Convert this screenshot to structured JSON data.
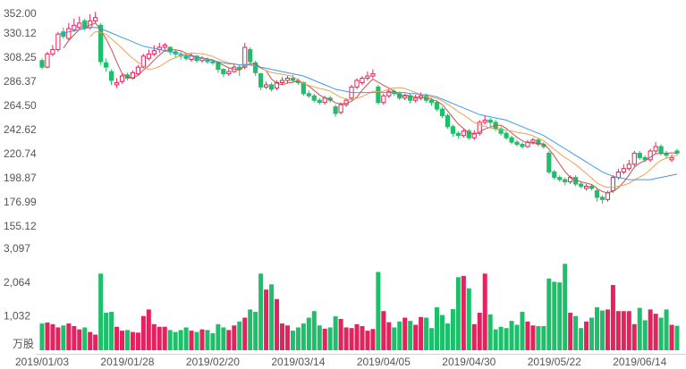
{
  "chart_data": {
    "type": "candlestick",
    "categories": [
      "2019/01/03",
      null,
      null,
      null,
      null,
      null,
      null,
      null,
      null,
      null,
      null,
      null,
      null,
      null,
      null,
      null,
      "2019/01/28",
      null,
      null,
      null,
      null,
      null,
      null,
      null,
      null,
      null,
      null,
      null,
      null,
      null,
      null,
      null,
      "2019/02/20",
      null,
      null,
      null,
      null,
      null,
      null,
      null,
      null,
      null,
      null,
      null,
      null,
      null,
      null,
      null,
      "2019/03/14",
      null,
      null,
      null,
      null,
      null,
      null,
      null,
      null,
      null,
      null,
      null,
      null,
      null,
      null,
      null,
      "2019/04/05",
      null,
      null,
      null,
      null,
      null,
      null,
      null,
      null,
      null,
      null,
      null,
      null,
      null,
      null,
      null,
      "2019/04/30",
      null,
      null,
      null,
      null,
      null,
      null,
      null,
      null,
      null,
      null,
      null,
      null,
      null,
      null,
      null,
      "2019/05/22",
      null,
      null,
      null,
      null,
      null,
      null,
      null,
      null,
      null,
      null,
      null,
      null,
      null,
      null,
      null,
      "2019/06/14",
      null,
      null,
      null,
      null,
      null,
      null,
      null
    ],
    "open": [
      306,
      300,
      312,
      316,
      332,
      326,
      334,
      336,
      342,
      336,
      342,
      338,
      304,
      296,
      284,
      287,
      293,
      290,
      294,
      300,
      308,
      312,
      316,
      318,
      318,
      314,
      311,
      310,
      307,
      310,
      306,
      307,
      305,
      304,
      298,
      294,
      296,
      300,
      300,
      316,
      304,
      294,
      282,
      284,
      281,
      286,
      288,
      290,
      288,
      286,
      276,
      274,
      270,
      268,
      272,
      264,
      259,
      266,
      272,
      282,
      286,
      290,
      292,
      282,
      268,
      274,
      278,
      276,
      272,
      274,
      270,
      272,
      274,
      270,
      268,
      262,
      256,
      246,
      240,
      238,
      242,
      236,
      240,
      250,
      252,
      250,
      244,
      240,
      236,
      232,
      230,
      228,
      232,
      234,
      230,
      222,
      205,
      200,
      198,
      196,
      200,
      194,
      190,
      192,
      188,
      182,
      180,
      188,
      200,
      205,
      208,
      212,
      222,
      218,
      216,
      224,
      228,
      222,
      216,
      224
    ],
    "high": [
      308,
      314,
      320,
      332,
      336,
      340,
      344,
      346,
      344,
      348,
      350,
      340,
      308,
      298,
      290,
      294,
      295,
      297,
      302,
      312,
      316,
      320,
      322,
      322,
      319,
      316,
      314,
      312,
      313,
      311,
      310,
      309,
      307,
      305,
      299,
      299,
      303,
      302,
      322,
      318,
      306,
      295,
      287,
      286,
      288,
      291,
      292,
      293,
      290,
      287,
      279,
      276,
      272,
      274,
      274,
      266,
      268,
      272,
      284,
      290,
      292,
      296,
      298,
      284,
      276,
      280,
      280,
      278,
      276,
      276,
      275,
      277,
      276,
      272,
      270,
      264,
      258,
      248,
      242,
      244,
      244,
      243,
      252,
      256,
      254,
      252,
      246,
      242,
      238,
      234,
      232,
      234,
      236,
      236,
      232,
      224,
      207,
      202,
      200,
      202,
      202,
      196,
      194,
      194,
      190,
      184,
      188,
      202,
      208,
      212,
      216,
      224,
      224,
      220,
      226,
      232,
      230,
      224,
      221,
      226
    ],
    "low": [
      298,
      299,
      310,
      314,
      326,
      324,
      332,
      334,
      333,
      334,
      340,
      302,
      296,
      284,
      281,
      285,
      288,
      289,
      293,
      299,
      306,
      310,
      313,
      314,
      311,
      309,
      307,
      306,
      305,
      304,
      304,
      303,
      302,
      295,
      291,
      292,
      295,
      292,
      298,
      302,
      292,
      279,
      280,
      278,
      279,
      284,
      286,
      286,
      284,
      274,
      272,
      268,
      266,
      266,
      268,
      255,
      257,
      264,
      270,
      280,
      284,
      288,
      290,
      266,
      266,
      272,
      274,
      270,
      270,
      267,
      268,
      270,
      268,
      265,
      260,
      254,
      244,
      237,
      235,
      236,
      234,
      234,
      238,
      248,
      246,
      242,
      238,
      234,
      230,
      228,
      226,
      227,
      230,
      228,
      226,
      203,
      198,
      196,
      193,
      194,
      192,
      190,
      188,
      188,
      178,
      176,
      178,
      186,
      198,
      203,
      206,
      210,
      216,
      214,
      214,
      222,
      220,
      217,
      214,
      220
    ],
    "close": [
      300,
      312,
      316,
      330,
      328,
      335,
      338,
      340,
      336,
      342,
      345,
      305,
      300,
      288,
      286,
      292,
      290,
      295,
      300,
      310,
      312,
      315,
      318,
      320,
      314,
      312,
      310,
      308,
      310,
      306,
      308,
      305,
      304,
      298,
      294,
      296,
      300,
      298,
      318,
      305,
      295,
      282,
      284,
      280,
      286,
      288,
      290,
      288,
      286,
      276,
      274,
      270,
      268,
      272,
      270,
      258,
      266,
      270,
      282,
      288,
      290,
      292,
      294,
      268,
      274,
      278,
      276,
      272,
      274,
      270,
      272,
      274,
      270,
      268,
      262,
      256,
      246,
      240,
      238,
      242,
      236,
      240,
      250,
      252,
      250,
      244,
      240,
      236,
      232,
      230,
      228,
      232,
      234,
      230,
      228,
      205,
      200,
      198,
      196,
      200,
      194,
      192,
      192,
      190,
      182,
      180,
      186,
      200,
      205,
      208,
      212,
      222,
      218,
      216,
      224,
      228,
      222,
      220,
      218,
      222
    ],
    "up_color": "#e3235d",
    "down_color": "#1dbf6a",
    "ylim": [
      155.12,
      352
    ],
    "yticks": [
      155.12,
      176.99,
      198.87,
      220.74,
      242.62,
      {
        "value": 264.5,
        "label": "264.50"
      },
      286.37,
      308.25,
      330.12,
      {
        "value": 352,
        "label": "352.00"
      }
    ],
    "moving_averages": [
      {
        "color": "#c9504a",
        "values": [
          null,
          null,
          null,
          null,
          317.2,
          324.2,
          329.4,
          334.2,
          335.4,
          338.2,
          340.2,
          333.6,
          325.6,
          316,
          304.8,
          294.2,
          291.2,
          290.2,
          292.6,
          297.4,
          301.4,
          306.4,
          311,
          315,
          315.8,
          315.8,
          314.8,
          312.8,
          310.8,
          309.2,
          308.4,
          307.4,
          306.6,
          304.2,
          301.8,
          299.4,
          298.4,
          297.2,
          301.2,
          303.4,
          303.2,
          299.6,
          296.8,
          289.2,
          285.4,
          284,
          285.6,
          286.4,
          287.6,
          285.6,
          282.8,
          278.8,
          274.8,
          272,
          270.8,
          267.6,
          266.8,
          267.2,
          269.2,
          272.8,
          279.2,
          284.4,
          289.2,
          286.4,
          283.6,
          281.2,
          278,
          273.6,
          274.8,
          274,
          272.8,
          272.4,
          272,
          270.8,
          269.2,
          266,
          260.4,
          254.4,
          248.4,
          244.4,
          240.4,
          239.2,
          241.2,
          244,
          245.6,
          247.2,
          247.2,
          244.4,
          240.4,
          236.4,
          233.2,
          231.6,
          231.2,
          230.8,
          230.4,
          225.8,
          219.4,
          212.2,
          205.4,
          199.8,
          197.6,
          196,
          194.8,
          193.6,
          190,
          187.2,
          186,
          187.6,
          190.6,
          195.8,
          202.2,
          209.4,
          213,
          215.2,
          218.4,
          221.6,
          221.6,
          222,
          222.4,
          222
        ]
      },
      {
        "color": "#eea152",
        "values": [
          null,
          null,
          null,
          null,
          null,
          null,
          null,
          null,
          null,
          327.7,
          332.2,
          331.5,
          329.9,
          325.7,
          321.5,
          317.2,
          312.4,
          307.9,
          304.3,
          301.1,
          297.8,
          298.8,
          300.6,
          303.8,
          306.6,
          308.6,
          310.6,
          311.9,
          312.9,
          312.5,
          312.1,
          311.1,
          309.7,
          307.5,
          305.5,
          303.9,
          302.9,
          301.9,
          302.7,
          302.6,
          301.3,
          299,
          297,
          295.2,
          294.4,
          293.6,
          292.6,
          291.6,
          288.4,
          285.5,
          283.4,
          282.2,
          280.6,
          279.8,
          278.2,
          275.2,
          272.8,
          271,
          270.6,
          271.8,
          273.4,
          275.6,
          278.2,
          277.8,
          278.2,
          280.2,
          281.2,
          281.4,
          280.6,
          278.8,
          277,
          275.2,
          272.8,
          272.8,
          271.6,
          269.4,
          266.4,
          263.2,
          259.6,
          256.8,
          253.2,
          249.8,
          247.8,
          246.2,
          245,
          243.8,
          243.2,
          242.8,
          242.2,
          241,
          240.2,
          239.4,
          237.8,
          235.6,
          233.4,
          229.5,
          225.5,
          221.7,
          218.1,
          215.1,
          211.7,
          207.7,
          203.5,
          199.5,
          194.9,
          192.4,
          191,
          191.2,
          192.1,
          192.9,
          194.7,
          197.7,
          200.3,
          202.9,
          207.1,
          211.9,
          215.5,
          217.5,
          218.8,
          220.2
        ]
      },
      {
        "color": "#3f9be6",
        "values": [
          null,
          null,
          null,
          330,
          331,
          332,
          333,
          334,
          335,
          336,
          336,
          335,
          333,
          331,
          329,
          327,
          325,
          323,
          321,
          319,
          318,
          317,
          316,
          315,
          314,
          313,
          312,
          311,
          310,
          309,
          308,
          307,
          306,
          305,
          304,
          303,
          303,
          302,
          302,
          302,
          301,
          300,
          299,
          298,
          297,
          296,
          295,
          294,
          293,
          292,
          290,
          288,
          286,
          284,
          282,
          280,
          279,
          278,
          277,
          277,
          277,
          277,
          277,
          277,
          277,
          277,
          277,
          277,
          277,
          276,
          276,
          275,
          275,
          274,
          273,
          271,
          269,
          267,
          265,
          263,
          261,
          259,
          257,
          256,
          255,
          254,
          253,
          252,
          250,
          248,
          246,
          244,
          242,
          240,
          238,
          235,
          232,
          229,
          226,
          223,
          220,
          217,
          214,
          211,
          208,
          205,
          203,
          201,
          200,
          199,
          198,
          198,
          198,
          198,
          198,
          199,
          200,
          201,
          202,
          203
        ]
      }
    ],
    "volume": {
      "unit": "万股",
      "values": [
        820,
        850,
        800,
        700,
        760,
        820,
        740,
        640,
        700,
        560,
        480,
        2350,
        1150,
        1180,
        720,
        600,
        620,
        560,
        540,
        1050,
        1250,
        800,
        720,
        720,
        620,
        560,
        620,
        700,
        600,
        560,
        640,
        620,
        520,
        800,
        700,
        620,
        760,
        880,
        1000,
        1250,
        1180,
        2350,
        1860,
        2020,
        1570,
        820,
        760,
        600,
        700,
        820,
        1000,
        1200,
        760,
        660,
        700,
        1040,
        960,
        700,
        680,
        800,
        740,
        600,
        650,
        2400,
        1200,
        860,
        700,
        880,
        1000,
        900,
        780,
        1020,
        1000,
        680,
        1320,
        1080,
        820,
        1260,
        2240,
        2280,
        1900,
        800,
        1150,
        2350,
        1100,
        640,
        720,
        680,
        900,
        780,
        1180,
        880,
        760,
        740,
        740,
        2200,
        2100,
        2080,
        2650,
        1150,
        1050,
        680,
        880,
        1000,
        1320,
        1220,
        1250,
        2000,
        1200,
        1200,
        1200,
        800,
        1300,
        920,
        1250,
        1120,
        1000,
        1250,
        780,
        750
      ],
      "ylim": [
        0,
        3097
      ],
      "yticks": [
        {
          "value": 1032,
          "label": "1,032"
        },
        {
          "value": 2064,
          "label": "2,064"
        },
        {
          "value": 3097,
          "label": "3,097"
        }
      ]
    }
  }
}
